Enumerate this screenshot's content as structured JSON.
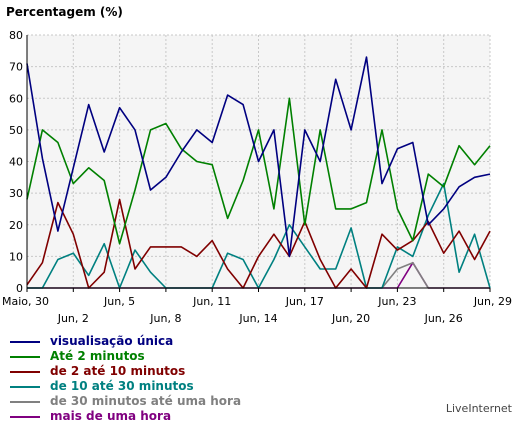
{
  "chart_data": {
    "type": "line",
    "title": "Percentagem (%)",
    "ylim": [
      0,
      80
    ],
    "yticks": [
      0,
      10,
      20,
      30,
      40,
      50,
      60,
      70,
      80
    ],
    "grid": true,
    "x": [
      "Maio, 30",
      "Maio, 31",
      "Jun, 1",
      "Jun, 2",
      "Jun, 3",
      "Jun, 4",
      "Jun, 5",
      "Jun, 6",
      "Jun, 7",
      "Jun, 8",
      "Jun, 9",
      "Jun, 10",
      "Jun, 11",
      "Jun, 12",
      "Jun, 13",
      "Jun, 14",
      "Jun, 15",
      "Jun, 16",
      "Jun, 17",
      "Jun, 18",
      "Jun, 19",
      "Jun, 20",
      "Jun, 21",
      "Jun, 22",
      "Jun, 23",
      "Jun, 24",
      "Jun, 25",
      "Jun, 26",
      "Jun, 27",
      "Jun, 28",
      "Jun, 29"
    ],
    "xtick_labels_top": [
      {
        "index": 0,
        "label": "Maio, 30"
      },
      {
        "index": 6,
        "label": "Jun, 5"
      },
      {
        "index": 12,
        "label": "Jun, 11"
      },
      {
        "index": 18,
        "label": "Jun, 17"
      },
      {
        "index": 24,
        "label": "Jun, 23"
      },
      {
        "index": 30,
        "label": "Jun, 29"
      }
    ],
    "xtick_labels_bottom": [
      {
        "index": 3,
        "label": "Jun, 2"
      },
      {
        "index": 9,
        "label": "Jun, 8"
      },
      {
        "index": 15,
        "label": "Jun, 14"
      },
      {
        "index": 21,
        "label": "Jun, 20"
      },
      {
        "index": 27,
        "label": "Jun, 26"
      }
    ],
    "series": [
      {
        "name": "visualisação única",
        "color": "#000080",
        "values": [
          71,
          41,
          18,
          38,
          58,
          43,
          57,
          50,
          31,
          35,
          43,
          50,
          46,
          61,
          58,
          40,
          50,
          10,
          50,
          40,
          66,
          50,
          73,
          33,
          44,
          46,
          20,
          25,
          32,
          35,
          36
        ]
      },
      {
        "name": "Até 2 minutos",
        "color": "#008000",
        "values": [
          28,
          50,
          46,
          33,
          38,
          34,
          14,
          31,
          50,
          52,
          44,
          40,
          39,
          22,
          34,
          50,
          25,
          60,
          20,
          50,
          25,
          25,
          27,
          50,
          25,
          15,
          36,
          32,
          45,
          39,
          45
        ]
      },
      {
        "name": "de 2 até 10 minutos",
        "color": "#800000",
        "values": [
          1,
          8,
          27,
          17,
          0,
          5,
          28,
          6,
          13,
          13,
          13,
          10,
          15,
          6,
          0,
          10,
          17,
          10,
          21,
          9,
          0,
          6,
          0,
          17,
          12,
          15,
          21,
          11,
          18,
          9,
          18
        ]
      },
      {
        "name": "de 10 até 30 minutos",
        "color": "#008080",
        "values": [
          0,
          0,
          9,
          11,
          4,
          14,
          0,
          12,
          5,
          0,
          0,
          0,
          0,
          11,
          9,
          0,
          9,
          20,
          13,
          6,
          6,
          19,
          0,
          0,
          13,
          10,
          23,
          33,
          5,
          17,
          0
        ]
      },
      {
        "name": "de 30 minutos até uma hora",
        "color": "#808080",
        "values": [
          0,
          0,
          0,
          0,
          0,
          0,
          0,
          0,
          0,
          0,
          0,
          0,
          0,
          0,
          0,
          0,
          0,
          0,
          0,
          0,
          0,
          0,
          0,
          0,
          6,
          8,
          0,
          0,
          0,
          0,
          0
        ]
      },
      {
        "name": "mais de uma hora",
        "color": "#800080",
        "values": [
          0,
          0,
          0,
          0,
          0,
          0,
          0,
          0,
          0,
          0,
          0,
          0,
          0,
          0,
          0,
          0,
          0,
          0,
          0,
          0,
          0,
          0,
          0,
          0,
          0,
          8,
          0,
          0,
          0,
          0,
          0
        ]
      }
    ]
  },
  "branding": "LiveInternet"
}
